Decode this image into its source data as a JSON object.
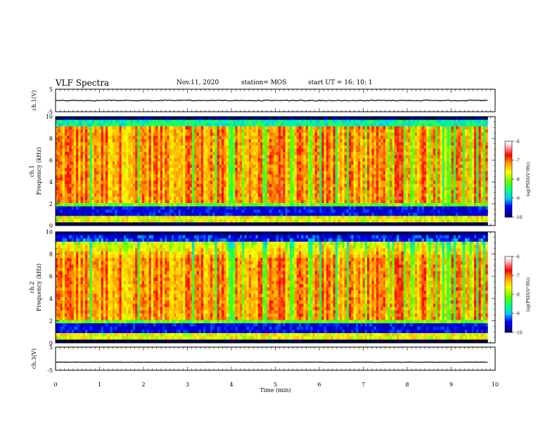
{
  "header": {
    "title": "VLF Spectra",
    "date": "Nov.11, 2020",
    "station": "station= MOS",
    "start_ut": "start  UT =   16: 10: 1"
  },
  "chart_data": [
    {
      "type": "line",
      "name": "ch1-waveform",
      "ylabel": "ch.1(V)",
      "ylim": [
        -5,
        5
      ],
      "yticks": [
        "5",
        "-5"
      ],
      "x_range": [
        0,
        9.83
      ],
      "trace_level": 0.0
    },
    {
      "type": "heatmap",
      "name": "ch1-spectrogram",
      "ylabel": "ch.1\nFrequency (kHz)",
      "ylim": [
        0,
        10
      ],
      "yticks": [
        "0",
        "2",
        "4",
        "6",
        "8",
        "10"
      ],
      "x_range": [
        0,
        9.83
      ],
      "colorbar": {
        "label": "log(PSD)(V²/Hz)",
        "range": [
          -10,
          -6
        ],
        "ticks": [
          "-6",
          "-7",
          "-8",
          "-9",
          "-10"
        ]
      }
    },
    {
      "type": "heatmap",
      "name": "ch2-spectrogram",
      "ylabel": "ch.2\nFrequency (kHz)",
      "ylim": [
        0,
        10
      ],
      "yticks": [
        "0",
        "2",
        "4",
        "6",
        "8",
        "10"
      ],
      "x_range": [
        0,
        9.83
      ],
      "colorbar": {
        "label": "log(PSD)(V²/Hz)",
        "range": [
          -10,
          -6
        ],
        "ticks": [
          "-6",
          "-7",
          "-8",
          "-9",
          "-10"
        ]
      }
    },
    {
      "type": "line",
      "name": "ch3-waveform",
      "ylabel": "ch.3(V)",
      "ylim": [
        -5,
        5
      ],
      "yticks": [
        "5",
        "-5"
      ],
      "x_range": [
        0,
        9.83
      ],
      "trace_level": -1.5
    }
  ],
  "x_axis": {
    "label": "Time (min)",
    "ticks": [
      "0",
      "1",
      "2",
      "3",
      "4",
      "5",
      "6",
      "7",
      "8",
      "9",
      "10"
    ],
    "range": [
      0,
      10
    ]
  },
  "colors": {
    "colormap": [
      "#000000",
      "#00007f",
      "#0000ff",
      "#00ffff",
      "#00ff00",
      "#ffff00",
      "#ff0000",
      "#ffffff"
    ]
  }
}
